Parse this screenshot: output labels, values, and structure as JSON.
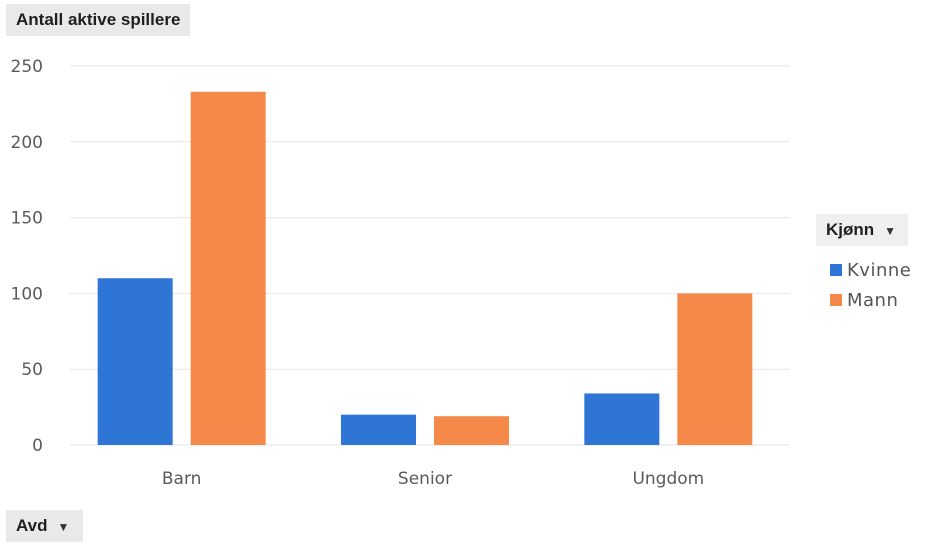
{
  "pivot": {
    "value_field": "Antall aktive spillere",
    "row_field": "Avd",
    "legend_field": "Kjønn"
  },
  "colors": {
    "kvinne": "#2e75d6",
    "mann": "#f4894a",
    "grid": "#e6e6e6"
  },
  "chart_data": {
    "type": "bar",
    "categories": [
      "Barn",
      "Senior",
      "Ungdom"
    ],
    "series": [
      {
        "name": "Kvinne",
        "values": [
          110,
          20,
          34
        ]
      },
      {
        "name": "Mann",
        "values": [
          233,
          19,
          100
        ]
      }
    ],
    "ylim": [
      0,
      250
    ],
    "yticks": [
      "0",
      "50",
      "100",
      "150",
      "200",
      "250"
    ],
    "title": "",
    "xlabel": "",
    "ylabel": "",
    "grid": true,
    "legend_position": "right"
  }
}
